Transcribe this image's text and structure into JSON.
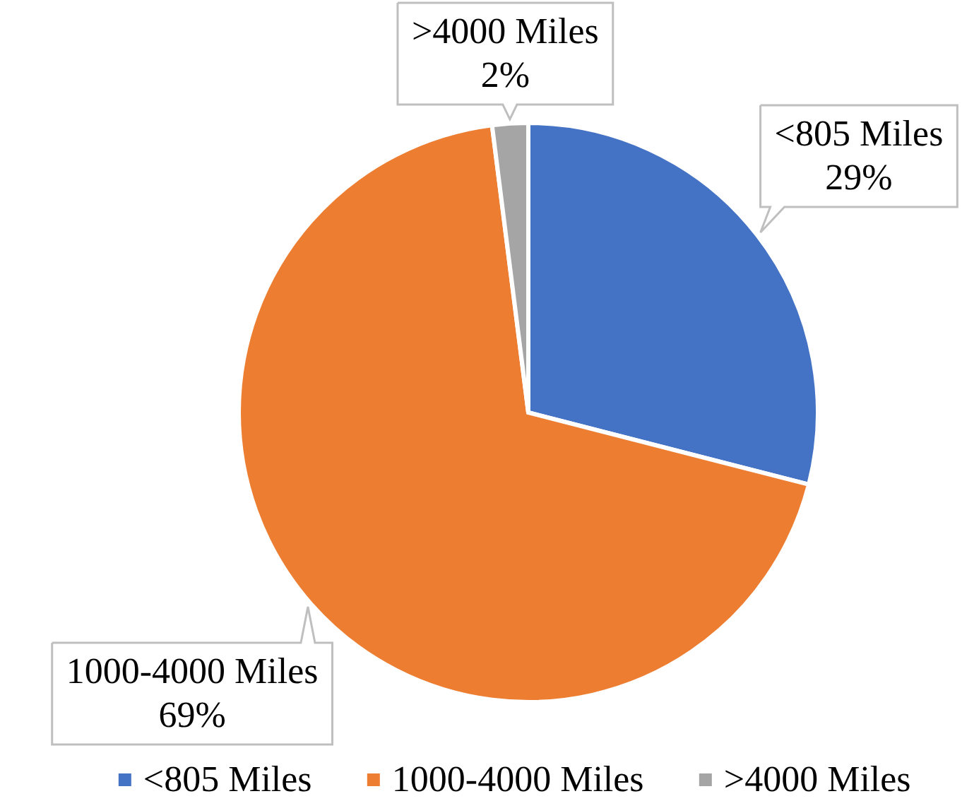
{
  "chart_data": {
    "type": "pie",
    "categories": [
      "<805 Miles",
      "1000-4000 Miles",
      ">4000 Miles"
    ],
    "values": [
      29,
      69,
      2
    ],
    "colors": [
      "#4472c4",
      "#ed7d31",
      "#a5a5a5"
    ],
    "value_labels": [
      "29%",
      "69%",
      "2%"
    ],
    "legend": "bottom"
  }
}
